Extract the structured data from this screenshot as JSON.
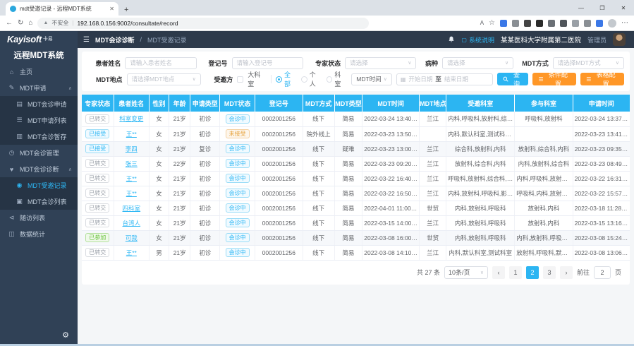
{
  "colors": {
    "accent": "#2cb5f2",
    "button_orange": "#ff9727",
    "status_green": "#67c23a",
    "status_warning": "#e6a23c",
    "sidebar_navy": "#304156",
    "table_header_blue": "#2cb5f2"
  },
  "icons": {
    "back": "←",
    "refresh": "↻",
    "home": "⌂",
    "warning": "▲",
    "read_aloud": "A",
    "star": "☆",
    "more": "⋯",
    "minimize": "—",
    "maximize": "❐",
    "close": "✕",
    "tab_close": "✕",
    "new_tab": "+",
    "collapse": "☰",
    "help": "▢",
    "gear": "⚙",
    "calendar": "▦",
    "select_arrow": "∨",
    "chevron_up": "∧",
    "menu_home": "⌂",
    "menu_apply": "✎",
    "menu_apply_form": "▤",
    "menu_apply_list": "☰",
    "menu_apply_draft": "▥",
    "menu_manage": "◷",
    "menu_diagnose": "♥",
    "menu_record": "◉",
    "menu_list": "▣",
    "menu_follow": "⊲",
    "menu_stats": "◫",
    "prev_page": "‹",
    "next_page": "›"
  },
  "browser": {
    "tab_title": "mdt受邀记录 - 远程MDT系统",
    "security_label": "不安全",
    "url": "192.168.0.156:9002/consultate/record"
  },
  "sidebar": {
    "logo": "Kayisoft",
    "logo_suffix": "卡易",
    "system_name": "远程MDT系统",
    "items": [
      {
        "label": "主页"
      },
      {
        "label": "MDT申请",
        "children": [
          {
            "label": "MDT会诊申请"
          },
          {
            "label": "MDT申请列表"
          },
          {
            "label": "MDT会诊暂存"
          }
        ]
      },
      {
        "label": "MDT会诊管理"
      },
      {
        "label": "MDT会诊诊断",
        "children": [
          {
            "label": "MDT受邀记录",
            "active": true
          },
          {
            "label": "MDT会诊列表"
          }
        ]
      },
      {
        "label": "随访列表"
      },
      {
        "label": "数据统计"
      }
    ]
  },
  "topbar": {
    "breadcrumb": {
      "parent": "MDT会诊诊断",
      "separator": "/",
      "current": "MDT受邀记录"
    },
    "system_help": "系统说明",
    "hospital": "某某医科大学附属第二医院",
    "role": "管理员"
  },
  "search": {
    "patient_name": {
      "label": "患者姓名",
      "placeholder": "请输入患者姓名"
    },
    "reg_no": {
      "label": "登记号",
      "placeholder": "请输入登记号"
    },
    "expert_status": {
      "label": "专家状态",
      "placeholder": "请选择"
    },
    "disease": {
      "label": "病种",
      "placeholder": "请选择"
    },
    "mdt_mode": {
      "label": "MDT方式",
      "placeholder": "请选择MDT方式"
    },
    "mdt_place": {
      "label": "MDT地点",
      "placeholder": "请选择MDT地点"
    },
    "invitee": {
      "label": "受邀方",
      "checkbox_label": "大科室",
      "radios": [
        "全部",
        "个人",
        "科室"
      ],
      "selected_radio": "全部"
    },
    "time_filter": {
      "select_value": "MDT时间",
      "start_placeholder": "开始日期",
      "separator": "至",
      "end_placeholder": "结束日期"
    },
    "buttons": {
      "query": "查询",
      "condition_config": "条件配置",
      "table_config": "表格配置"
    }
  },
  "table": {
    "headers": [
      "专家状态",
      "患者姓名",
      "性别",
      "年龄",
      "申请类型",
      "MDT状态",
      "登记号",
      "MDT方式",
      "MDT类型",
      "MDT时间",
      "MDT地点",
      "受邀科室",
      "参与科室",
      "申请时间"
    ],
    "rows": [
      {
        "expert_status": "已转交",
        "expert_status_type": "gray",
        "patient": "科室变更",
        "gender": "女",
        "age": "21岁",
        "apply_type": "初诊",
        "mdt_status": "会诊中",
        "mdt_status_type": "cyan",
        "reg_no": "0002001256",
        "mode": "线下",
        "type": "简易",
        "time": "2022-03-24 13:40:00",
        "place": "兰江",
        "invited": "内科,呼吸科,放射科,综合科",
        "joined": "呼吸科,放射科",
        "apply_time": "2022-03-24 13:37:44"
      },
      {
        "expert_status": "已接受",
        "expert_status_type": "cyan",
        "patient": "王**",
        "gender": "女",
        "age": "21岁",
        "apply_type": "初诊",
        "mdt_status": "未接受",
        "mdt_status_type": "orange",
        "reg_no": "0002001256",
        "mode": "院外线上",
        "type": "简易",
        "time": "2022-03-23 13:50:00",
        "place": "",
        "invited": "内科,默认科室,测试科室,放射科",
        "joined": "",
        "apply_time": "2022-03-23 13:41:45"
      },
      {
        "expert_status": "已接受",
        "expert_status_type": "cyan",
        "patient": "李四",
        "gender": "女",
        "age": "21岁",
        "apply_type": "复诊",
        "mdt_status": "会诊中",
        "mdt_status_type": "cyan",
        "reg_no": "0002001256",
        "mode": "线下",
        "type": "疑难",
        "time": "2022-03-23 13:00:00",
        "place": "兰江",
        "invited": "综合科,放射科,内科",
        "joined": "放射科,综合科,内科",
        "apply_time": "2022-03-23 09:35:39"
      },
      {
        "expert_status": "已转交",
        "expert_status_type": "gray",
        "patient": "张三",
        "gender": "女",
        "age": "22岁",
        "apply_type": "初诊",
        "mdt_status": "会诊中",
        "mdt_status_type": "cyan",
        "reg_no": "0002001256",
        "mode": "线下",
        "type": "简易",
        "time": "2022-03-23 09:20:00",
        "place": "兰江",
        "invited": "放射科,综合科,内科",
        "joined": "内科,放射科,综合科",
        "apply_time": "2022-03-23 08:49:53"
      },
      {
        "expert_status": "已转交",
        "expert_status_type": "gray",
        "patient": "王**",
        "gender": "女",
        "age": "21岁",
        "apply_type": "初诊",
        "mdt_status": "会诊中",
        "mdt_status_type": "cyan",
        "reg_no": "0002001256",
        "mode": "线下",
        "type": "简易",
        "time": "2022-03-22 16:40:00",
        "place": "兰江",
        "invited": "呼吸科,放射科,综合科,内科",
        "joined": "内科,呼吸科,放射科,综合科",
        "apply_time": "2022-03-22 16:31:36"
      },
      {
        "expert_status": "已转交",
        "expert_status_type": "gray",
        "patient": "王**",
        "gender": "女",
        "age": "21岁",
        "apply_type": "初诊",
        "mdt_status": "会诊中",
        "mdt_status_type": "cyan",
        "reg_no": "0002001256",
        "mode": "线下",
        "type": "简易",
        "time": "2022-03-22 16:50:00",
        "place": "兰江",
        "invited": "内科,放射科,呼吸科,影像科",
        "joined": "呼吸科,内科,放射科,影像科",
        "apply_time": "2022-03-22 15:57:03"
      },
      {
        "expert_status": "已转交",
        "expert_status_type": "gray",
        "patient": "四科室",
        "gender": "女",
        "age": "21岁",
        "apply_type": "初诊",
        "mdt_status": "会诊中",
        "mdt_status_type": "cyan",
        "reg_no": "0002001256",
        "mode": "线下",
        "type": "简易",
        "time": "2022-04-01 11:00:00",
        "place": "世贸",
        "invited": "内科,放射科,呼吸科",
        "joined": "放射科,内科",
        "apply_time": "2022-03-18 11:28:25"
      },
      {
        "expert_status": "已转交",
        "expert_status_type": "gray",
        "patient": "台湾人",
        "gender": "女",
        "age": "21岁",
        "apply_type": "初诊",
        "mdt_status": "会诊中",
        "mdt_status_type": "cyan",
        "reg_no": "0002001256",
        "mode": "线下",
        "type": "简易",
        "time": "2022-03-15 14:00:00",
        "place": "兰江",
        "invited": "内科,放射科,呼吸科",
        "joined": "放射科,内科",
        "apply_time": "2022-03-15 13:16:26"
      },
      {
        "expert_status": "已参加",
        "expert_status_type": "green",
        "patient": "可我",
        "gender": "女",
        "age": "21岁",
        "apply_type": "初诊",
        "mdt_status": "会诊中",
        "mdt_status_type": "cyan",
        "reg_no": "0002001256",
        "mode": "线下",
        "type": "简易",
        "time": "2022-03-08 16:00:00",
        "place": "世贸",
        "invited": "内科,放射科,呼吸科",
        "joined": "内科,放射科,呼吸科,测试科室",
        "apply_time": "2022-03-08 15:24:58"
      },
      {
        "expert_status": "已转交",
        "expert_status_type": "gray",
        "patient": "王**",
        "gender": "男",
        "age": "21岁",
        "apply_type": "初诊",
        "mdt_status": "会诊中",
        "mdt_status_type": "cyan",
        "reg_no": "0002001256",
        "mode": "线下",
        "type": "简易",
        "time": "2022-03-08 14:10:00",
        "place": "兰江",
        "invited": "内科,默认科室,测试科室",
        "joined": "放射科,呼吸科,默认科室,测...",
        "apply_time": "2022-03-08 13:06:56"
      }
    ]
  },
  "pagination": {
    "total": "共 27 条",
    "page_size": "10条/页",
    "pages": [
      "1",
      "2",
      "3"
    ],
    "active_page": "2",
    "jump_label": "前往",
    "jump_value": "2",
    "jump_suffix": "页"
  }
}
